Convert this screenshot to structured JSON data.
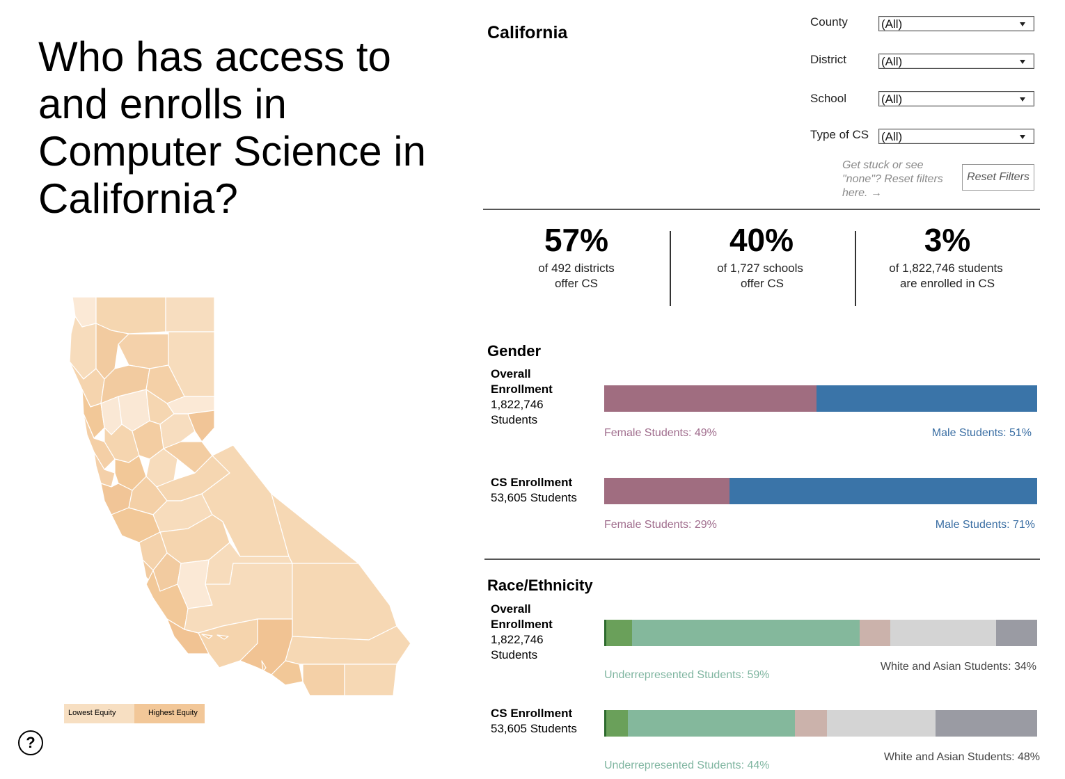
{
  "title": "Who has access to and enrolls in Computer Science in California?",
  "region": "California",
  "filters": [
    {
      "label": "County",
      "value": "(All)"
    },
    {
      "label": "District",
      "value": "(All)"
    },
    {
      "label": "School",
      "value": "(All)"
    },
    {
      "label": "Type of CS",
      "value": "(All)"
    }
  ],
  "reset": {
    "hint": "Get stuck or see \"none\"? Reset filters here. →",
    "button_label": "Reset Filters"
  },
  "stats": [
    {
      "value": "57%",
      "line1": "of 492 districts",
      "line2": "offer CS"
    },
    {
      "value": "40%",
      "line1": "of 1,727 schools",
      "line2": "offer CS"
    },
    {
      "value": "3%",
      "line1": "of 1,822,746 students",
      "line2": "are enrolled in CS"
    }
  ],
  "gender": {
    "title": "Gender",
    "overall": {
      "label_line1": "Overall",
      "label_line2": "Enrollment",
      "count": "1,822,746",
      "unit": "Students",
      "female_pct": 49,
      "male_pct": 51,
      "female_label": "Female Students: 49%",
      "male_label": "Male Students: 51%"
    },
    "cs": {
      "label": "CS Enrollment",
      "count": "53,605 Students",
      "female_pct": 29,
      "male_pct": 71,
      "female_label": "Female Students: 29%",
      "male_label": "Male Students: 71%"
    }
  },
  "race": {
    "title": "Race/Ethnicity",
    "overall": {
      "label_line1": "Overall",
      "label_line2": "Enrollment",
      "count": "1,822,746",
      "unit": "Students",
      "segments": [
        0.5,
        6,
        52.5,
        7,
        24.5,
        9.5
      ],
      "urm_label": "Underrepresented Students: 59%",
      "wa_label": "White and Asian Students: 34%"
    },
    "cs": {
      "label": "CS Enrollment",
      "count": "53,605 Students",
      "segments": [
        0.5,
        5,
        38.5,
        7.5,
        25,
        23.5
      ],
      "urm_label": "Underrepresented Students: 44%",
      "wa_label": "White and Asian Students: 48%"
    }
  },
  "colors": {
    "female": "#a06d80",
    "male": "#3a74a8",
    "female_text": "#a06d8d",
    "male_text": "#3a6ea3",
    "race_segments": [
      "#2e6b2e",
      "#6aa05a",
      "#84b89c",
      "#cbb2ab",
      "#d4d4d4",
      "#9a9ba3"
    ],
    "urm_text": "#7fb5a0",
    "wa_text": "#444444",
    "map_low": "#f7dfc2",
    "map_high": "#f0c393"
  },
  "legend": {
    "low": "Lowest Equity",
    "high": "Highest Equity"
  },
  "help_label": "?"
}
